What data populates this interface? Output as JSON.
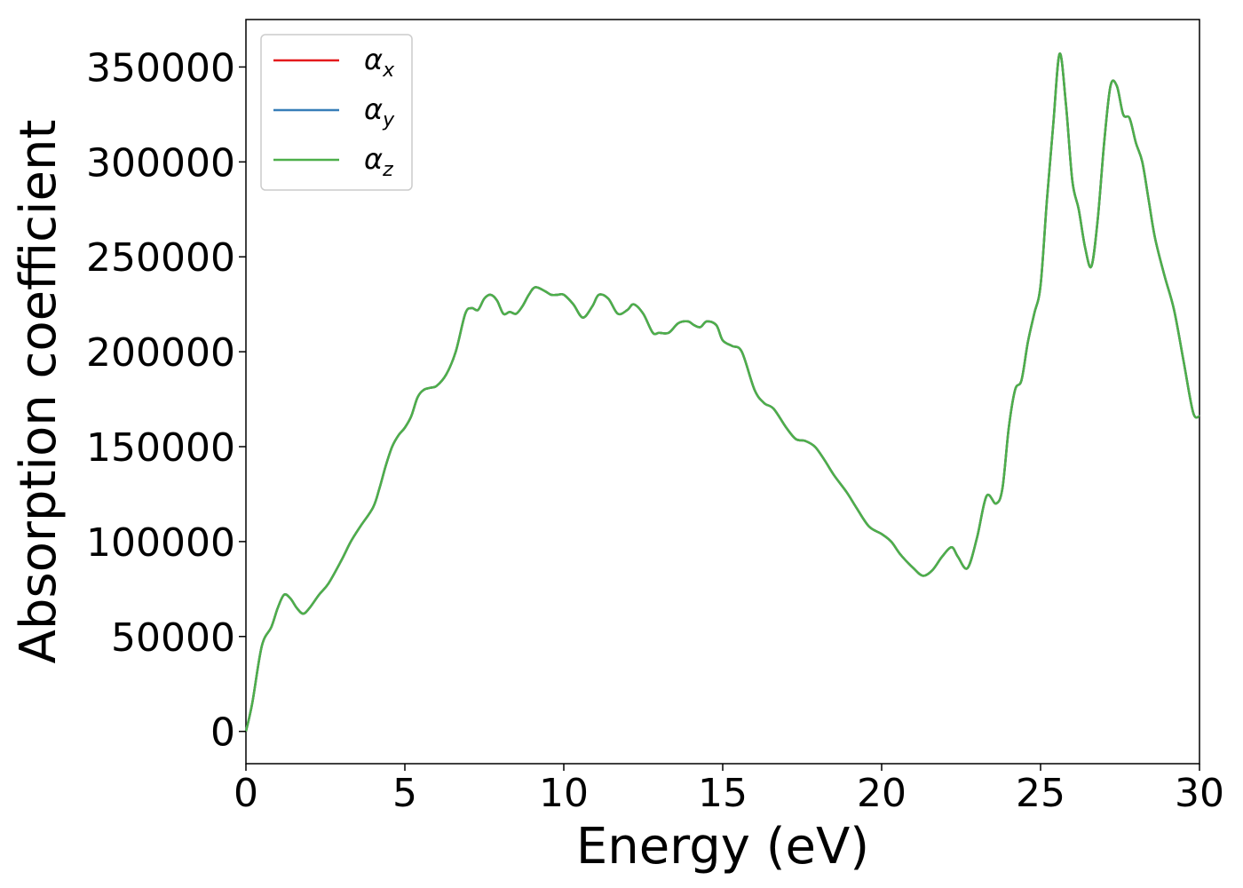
{
  "chart_data": {
    "type": "line",
    "xlabel": "Energy (eV)",
    "ylabel": "Absorption coefficient",
    "xlim": [
      0,
      30
    ],
    "ylim": [
      -17000,
      375000
    ],
    "xticks": [
      0,
      5,
      10,
      15,
      20,
      25,
      30
    ],
    "xtick_labels": [
      "0",
      "5",
      "10",
      "15",
      "20",
      "25",
      "30"
    ],
    "yticks": [
      0,
      50000,
      100000,
      150000,
      200000,
      250000,
      300000,
      350000
    ],
    "ytick_labels": [
      "0",
      "50000",
      "100000",
      "150000",
      "200000",
      "250000",
      "300000",
      "350000"
    ],
    "grid": false,
    "legend_placement": "top-left",
    "series": [
      {
        "name": "α",
        "subscript": "x",
        "color": "#e41a1c",
        "shared_x_ref": true
      },
      {
        "name": "α",
        "subscript": "y",
        "color": "#377eb8",
        "shared_x_ref": true
      },
      {
        "name": "α",
        "subscript": "z",
        "color": "#4daf4a",
        "shared_x_ref": true
      }
    ],
    "x": [
      0,
      0.2,
      0.5,
      0.8,
      1.0,
      1.2,
      1.4,
      1.6,
      1.8,
      2.0,
      2.3,
      2.6,
      3.0,
      3.3,
      3.6,
      4.0,
      4.2,
      4.4,
      4.6,
      4.8,
      5.0,
      5.2,
      5.4,
      5.6,
      5.8,
      6.0,
      6.3,
      6.6,
      6.9,
      7.1,
      7.3,
      7.5,
      7.7,
      7.9,
      8.1,
      8.3,
      8.5,
      8.7,
      8.9,
      9.1,
      9.4,
      9.6,
      9.8,
      10.0,
      10.3,
      10.6,
      10.9,
      11.1,
      11.4,
      11.7,
      12.0,
      12.2,
      12.5,
      12.8,
      13.0,
      13.3,
      13.6,
      13.9,
      14.1,
      14.3,
      14.5,
      14.8,
      15.0,
      15.3,
      15.6,
      16.0,
      16.3,
      16.6,
      17.0,
      17.3,
      17.6,
      17.9,
      18.2,
      18.5,
      18.9,
      19.2,
      19.6,
      20.0,
      20.3,
      20.6,
      21.0,
      21.3,
      21.6,
      21.9,
      22.2,
      22.4,
      22.7,
      23.0,
      23.3,
      23.6,
      23.8,
      24.0,
      24.2,
      24.4,
      24.6,
      24.8,
      25.0,
      25.2,
      25.4,
      25.6,
      25.8,
      26.0,
      26.2,
      26.4,
      26.6,
      26.8,
      27.0,
      27.2,
      27.4,
      27.6,
      27.8,
      28.0,
      28.2,
      28.4,
      28.6,
      28.9,
      29.2,
      29.5,
      29.8,
      30.0
    ],
    "values": [
      0,
      15000,
      45000,
      55000,
      65000,
      72000,
      70000,
      65000,
      62000,
      65000,
      72000,
      78000,
      90000,
      100000,
      108000,
      118000,
      128000,
      140000,
      150000,
      156000,
      160000,
      166000,
      176000,
      180000,
      181000,
      182000,
      188000,
      200000,
      220000,
      223000,
      222000,
      228000,
      230000,
      227000,
      220000,
      221000,
      220000,
      224000,
      230000,
      234000,
      232000,
      230000,
      230000,
      230000,
      225000,
      218000,
      224000,
      230000,
      228000,
      220000,
      222000,
      225000,
      220000,
      210000,
      210000,
      210000,
      215000,
      216000,
      214000,
      213000,
      216000,
      214000,
      206000,
      203000,
      200000,
      180000,
      173000,
      170000,
      160000,
      154000,
      153000,
      150000,
      143000,
      135000,
      126000,
      118000,
      108000,
      104000,
      100000,
      93000,
      86000,
      82000,
      85000,
      92000,
      97000,
      92000,
      86000,
      102000,
      124000,
      120000,
      128000,
      160000,
      180000,
      185000,
      205000,
      220000,
      235000,
      280000,
      320000,
      357000,
      330000,
      290000,
      275000,
      255000,
      245000,
      270000,
      310000,
      340000,
      340000,
      325000,
      323000,
      310000,
      300000,
      280000,
      260000,
      240000,
      222000,
      195000,
      168000,
      166000
    ]
  }
}
